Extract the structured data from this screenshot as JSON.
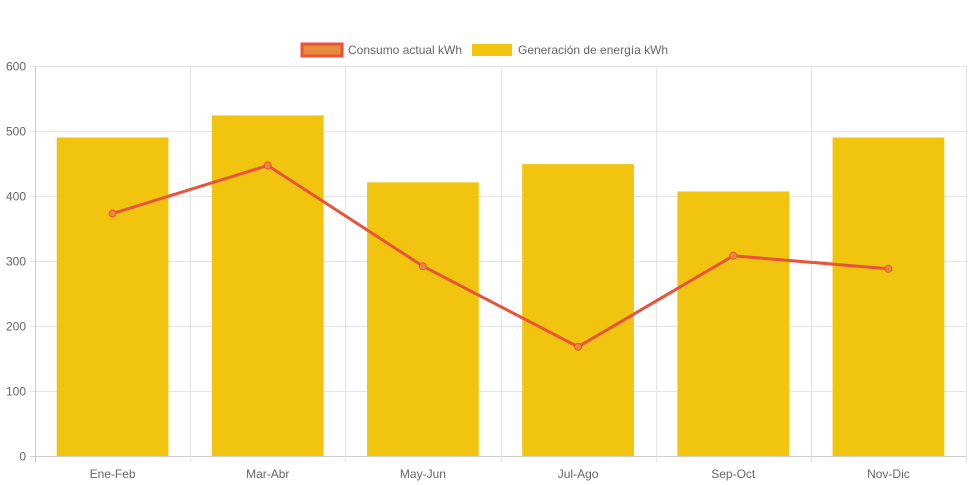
{
  "chart_data": {
    "type": "bar",
    "categories": [
      "Ene-Feb",
      "Mar-Abr",
      "May-Jun",
      "Jul-Ago",
      "Sep-Oct",
      "Nov-Dic"
    ],
    "series": [
      {
        "name": "Consumo actual kWh",
        "type": "line",
        "values": [
          373,
          447,
          292,
          168,
          308,
          288
        ],
        "color": "#e8533a",
        "point_fill": "#e98a3b"
      },
      {
        "name": "Generación de energía kWh",
        "type": "bar",
        "values": [
          490,
          524,
          421,
          449,
          407,
          490
        ],
        "color": "#f1c40f"
      }
    ],
    "yticks": [
      "0",
      "100",
      "200",
      "300",
      "400",
      "500",
      "600"
    ],
    "ylim": [
      0,
      600
    ],
    "grid": true,
    "legend": "top-center",
    "title": "",
    "xlabel": "",
    "ylabel": ""
  }
}
